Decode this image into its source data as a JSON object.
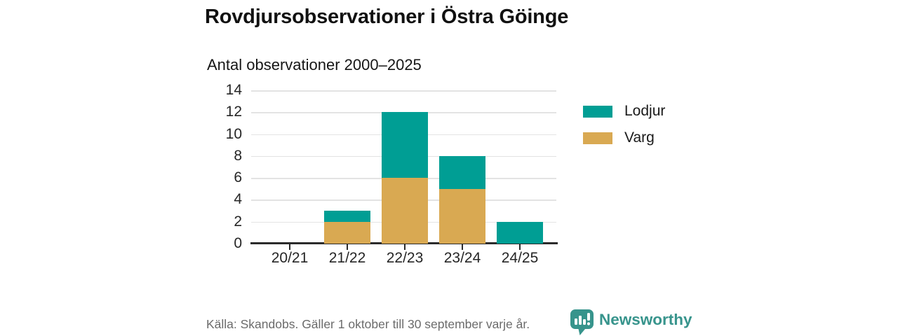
{
  "title": "Rovdjursobservationer i Östra Göinge",
  "subtitle": "Antal observationer 2000–2025",
  "source": "Källa: Skandobs. Gäller 1 oktober till 30 september varje år.",
  "brand": {
    "name": "Newsworthy",
    "logo_icon": "speech-bubble-bar-chart-icon",
    "color": "#37948c"
  },
  "colors": {
    "lodjur": "#009e94",
    "varg": "#d9a952",
    "grid": "#e3e3e3",
    "axis": "#2b2b2b",
    "text": "#262626",
    "muted": "#6b6b6b"
  },
  "legend": {
    "items": [
      {
        "label": "Lodjur",
        "color": "#009e94"
      },
      {
        "label": "Varg",
        "color": "#d9a952"
      }
    ]
  },
  "chart_data": {
    "type": "bar",
    "stacked": true,
    "title": "Antal observationer 2000–2025",
    "categories": [
      "20/21",
      "21/22",
      "22/23",
      "23/24",
      "24/25"
    ],
    "series": [
      {
        "name": "Lodjur",
        "color": "#009e94",
        "values": [
          0,
          1,
          6,
          3,
          2
        ]
      },
      {
        "name": "Varg",
        "color": "#d9a952",
        "values": [
          0,
          2,
          6,
          5,
          0
        ]
      }
    ],
    "stack_order_bottom_to_top": [
      "Varg",
      "Lodjur"
    ],
    "totals": [
      0,
      3,
      12,
      8,
      2
    ],
    "ylim": [
      0,
      14
    ],
    "yticks": [
      0,
      2,
      4,
      6,
      8,
      10,
      12,
      14
    ],
    "grid": "horizontal",
    "legend_position": "right"
  }
}
